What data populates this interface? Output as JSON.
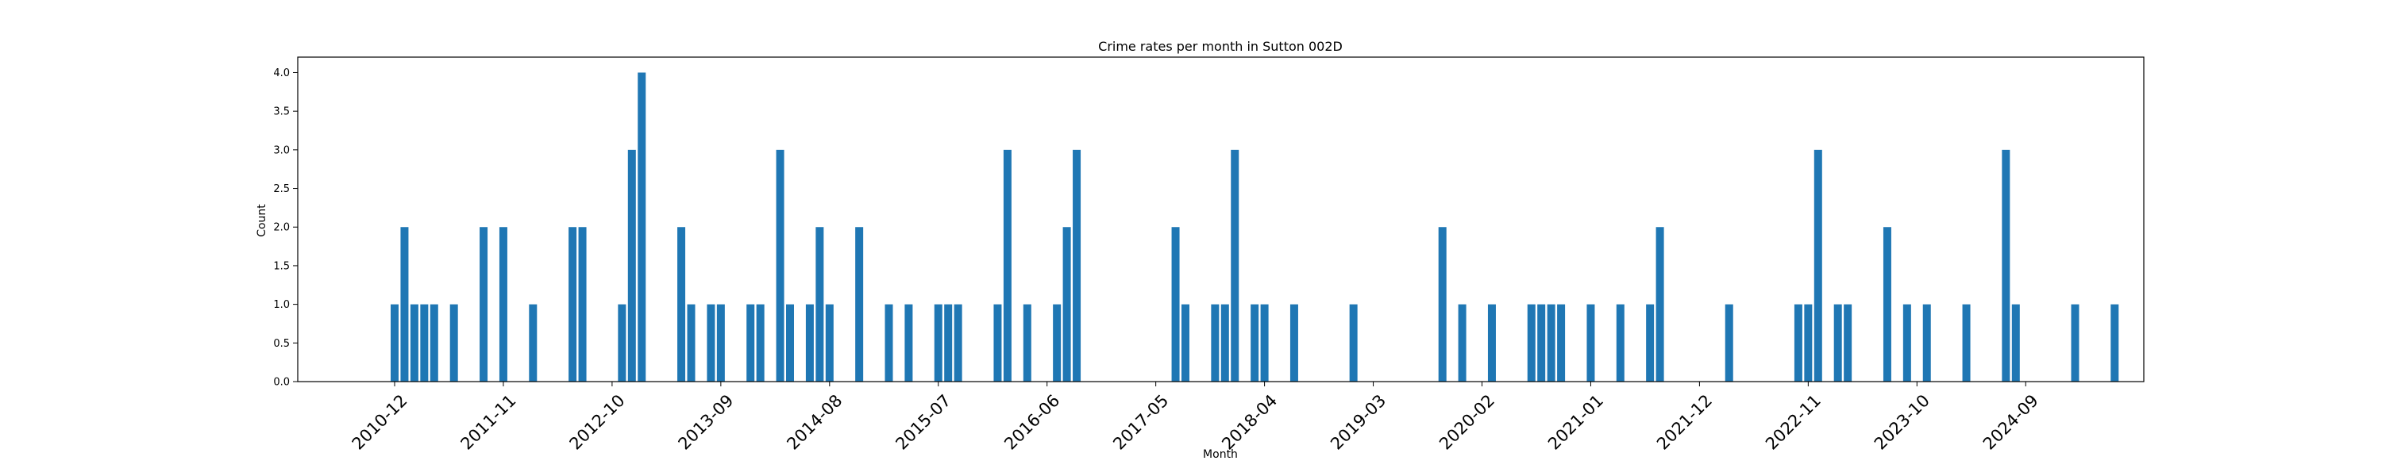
{
  "chart_data": {
    "type": "bar",
    "title": "Crime rates per month in Sutton 002D",
    "xlabel": "Month",
    "ylabel": "Count",
    "ylim": [
      0,
      4.2
    ],
    "yticks": [
      "0.0",
      "0.5",
      "1.0",
      "1.5",
      "2.0",
      "2.5",
      "3.0",
      "3.5",
      "4.0"
    ],
    "xticks": [
      "2010-12",
      "2011-11",
      "2012-10",
      "2013-09",
      "2014-08",
      "2015-07",
      "2016-06",
      "2017-05",
      "2018-04",
      "2019-03",
      "2020-02",
      "2021-01",
      "2021-12",
      "2022-11",
      "2023-10",
      "2024-09"
    ],
    "grid": false,
    "color": "#1f77b4",
    "x": [
      "2010-12",
      "2011-01",
      "2011-02",
      "2011-03",
      "2011-04",
      "2011-06",
      "2011-09",
      "2011-11",
      "2012-02",
      "2012-06",
      "2012-07",
      "2012-11",
      "2012-12",
      "2013-01",
      "2013-05",
      "2013-06",
      "2013-08",
      "2013-09",
      "2013-12",
      "2014-01",
      "2014-03",
      "2014-04",
      "2014-06",
      "2014-07",
      "2014-08",
      "2014-11",
      "2015-02",
      "2015-04",
      "2015-07",
      "2015-08",
      "2015-09",
      "2016-01",
      "2016-02",
      "2016-04",
      "2016-07",
      "2016-08",
      "2016-09",
      "2017-07",
      "2017-08",
      "2017-11",
      "2017-12",
      "2018-01",
      "2018-03",
      "2018-04",
      "2018-07",
      "2019-01",
      "2019-10",
      "2019-12",
      "2020-03",
      "2020-07",
      "2020-08",
      "2020-09",
      "2020-10",
      "2021-01",
      "2021-04",
      "2021-07",
      "2021-08",
      "2022-03",
      "2022-10",
      "2022-11",
      "2022-12",
      "2023-02",
      "2023-03",
      "2023-07",
      "2023-09",
      "2023-11",
      "2024-03",
      "2024-07",
      "2024-08",
      "2025-02",
      "2025-06"
    ],
    "values": [
      1,
      2,
      1,
      1,
      1,
      1,
      2,
      2,
      1,
      2,
      2,
      1,
      3,
      4,
      2,
      1,
      1,
      1,
      1,
      1,
      3,
      1,
      1,
      2,
      1,
      2,
      1,
      1,
      1,
      1,
      1,
      1,
      3,
      1,
      1,
      2,
      3,
      2,
      1,
      1,
      1,
      3,
      1,
      1,
      1,
      1,
      2,
      1,
      1,
      1,
      1,
      1,
      1,
      1,
      1,
      1,
      2,
      1,
      1,
      1,
      3,
      1,
      1,
      2,
      1,
      1,
      1,
      3,
      1,
      1,
      1
    ]
  }
}
